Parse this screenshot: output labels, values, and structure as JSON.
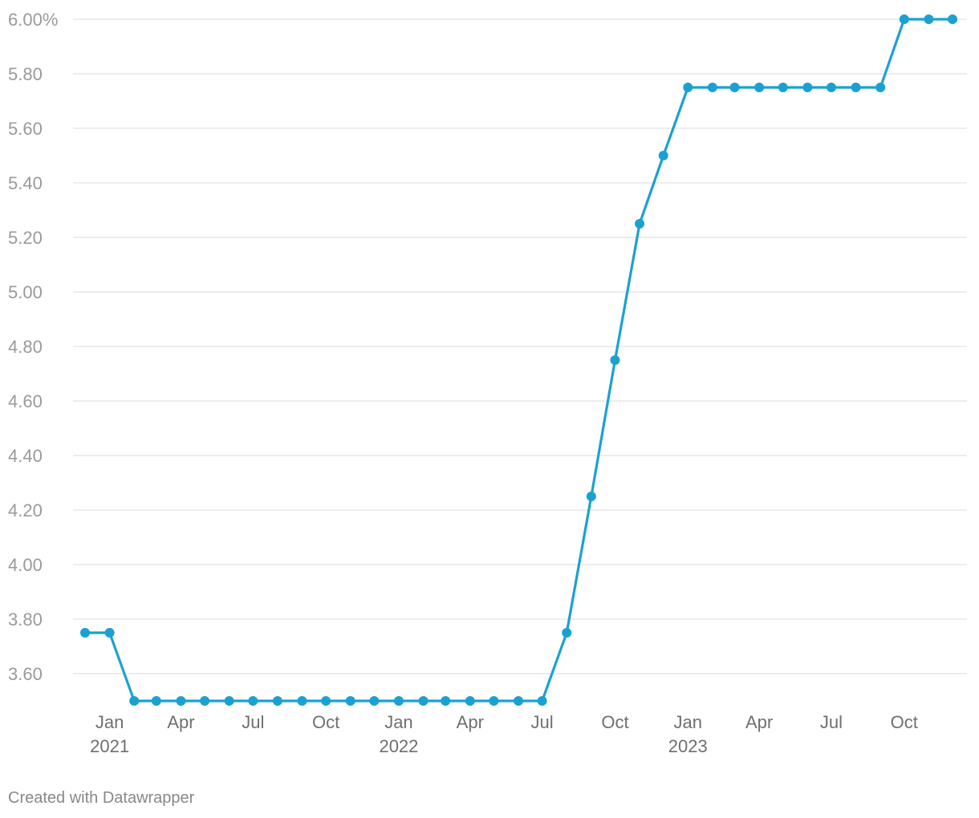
{
  "chart_data": {
    "type": "line",
    "title": "",
    "xlabel": "",
    "ylabel": "",
    "ylim": [
      3.5,
      6.0
    ],
    "xlim": [
      "2020-12-01",
      "2023-12-15"
    ],
    "grid": true,
    "legend": "none",
    "y_ticks": [
      {
        "value": 6.0,
        "label": "6.00%"
      },
      {
        "value": 5.8,
        "label": "5.80"
      },
      {
        "value": 5.6,
        "label": "5.60"
      },
      {
        "value": 5.4,
        "label": "5.40"
      },
      {
        "value": 5.2,
        "label": "5.20"
      },
      {
        "value": 5.0,
        "label": "5.00"
      },
      {
        "value": 4.8,
        "label": "4.80"
      },
      {
        "value": 4.6,
        "label": "4.60"
      },
      {
        "value": 4.4,
        "label": "4.40"
      },
      {
        "value": 4.2,
        "label": "4.20"
      },
      {
        "value": 4.0,
        "label": "4.00"
      },
      {
        "value": 3.8,
        "label": "3.80"
      },
      {
        "value": 3.6,
        "label": "3.60"
      }
    ],
    "x_ticks": [
      {
        "date": "2021-01-01",
        "label": "Jan",
        "year": "2021"
      },
      {
        "date": "2021-04-01",
        "label": "Apr",
        "year": ""
      },
      {
        "date": "2021-07-01",
        "label": "Jul",
        "year": ""
      },
      {
        "date": "2021-10-01",
        "label": "Oct",
        "year": ""
      },
      {
        "date": "2022-01-01",
        "label": "Jan",
        "year": "2022"
      },
      {
        "date": "2022-04-01",
        "label": "Apr",
        "year": ""
      },
      {
        "date": "2022-07-01",
        "label": "Jul",
        "year": ""
      },
      {
        "date": "2022-10-01",
        "label": "Oct",
        "year": ""
      },
      {
        "date": "2023-01-01",
        "label": "Jan",
        "year": "2023"
      },
      {
        "date": "2023-04-01",
        "label": "Apr",
        "year": ""
      },
      {
        "date": "2023-07-01",
        "label": "Jul",
        "year": ""
      },
      {
        "date": "2023-10-01",
        "label": "Oct",
        "year": ""
      }
    ],
    "series": [
      {
        "color": "#1ba1d1",
        "points": [
          {
            "x": "2020-12-01",
            "y": 3.75
          },
          {
            "x": "2021-01-01",
            "y": 3.75
          },
          {
            "x": "2021-02-01",
            "y": 3.5
          },
          {
            "x": "2021-03-01",
            "y": 3.5
          },
          {
            "x": "2021-04-01",
            "y": 3.5
          },
          {
            "x": "2021-05-01",
            "y": 3.5
          },
          {
            "x": "2021-06-01",
            "y": 3.5
          },
          {
            "x": "2021-07-01",
            "y": 3.5
          },
          {
            "x": "2021-08-01",
            "y": 3.5
          },
          {
            "x": "2021-09-01",
            "y": 3.5
          },
          {
            "x": "2021-10-01",
            "y": 3.5
          },
          {
            "x": "2021-11-01",
            "y": 3.5
          },
          {
            "x": "2021-12-01",
            "y": 3.5
          },
          {
            "x": "2022-01-01",
            "y": 3.5
          },
          {
            "x": "2022-02-01",
            "y": 3.5
          },
          {
            "x": "2022-03-01",
            "y": 3.5
          },
          {
            "x": "2022-04-01",
            "y": 3.5
          },
          {
            "x": "2022-05-01",
            "y": 3.5
          },
          {
            "x": "2022-06-01",
            "y": 3.5
          },
          {
            "x": "2022-07-01",
            "y": 3.5
          },
          {
            "x": "2022-08-01",
            "y": 3.75
          },
          {
            "x": "2022-09-01",
            "y": 4.25
          },
          {
            "x": "2022-10-01",
            "y": 4.75
          },
          {
            "x": "2022-11-01",
            "y": 5.25
          },
          {
            "x": "2022-12-01",
            "y": 5.5
          },
          {
            "x": "2023-01-01",
            "y": 5.75
          },
          {
            "x": "2023-02-01",
            "y": 5.75
          },
          {
            "x": "2023-03-01",
            "y": 5.75
          },
          {
            "x": "2023-04-01",
            "y": 5.75
          },
          {
            "x": "2023-05-01",
            "y": 5.75
          },
          {
            "x": "2023-06-01",
            "y": 5.75
          },
          {
            "x": "2023-07-01",
            "y": 5.75
          },
          {
            "x": "2023-08-01",
            "y": 5.75
          },
          {
            "x": "2023-09-01",
            "y": 5.75
          },
          {
            "x": "2023-10-01",
            "y": 6.0
          },
          {
            "x": "2023-11-01",
            "y": 6.0
          },
          {
            "x": "2023-12-01",
            "y": 6.0
          }
        ]
      }
    ]
  },
  "footer": {
    "credit": "Created with Datawrapper"
  },
  "colors": {
    "line": "#1ba1d1",
    "grid": "#e2e2e2",
    "y_tick_text": "#9a9a9a",
    "x_tick_text": "#6f6f6f",
    "credit_text": "#888888"
  }
}
